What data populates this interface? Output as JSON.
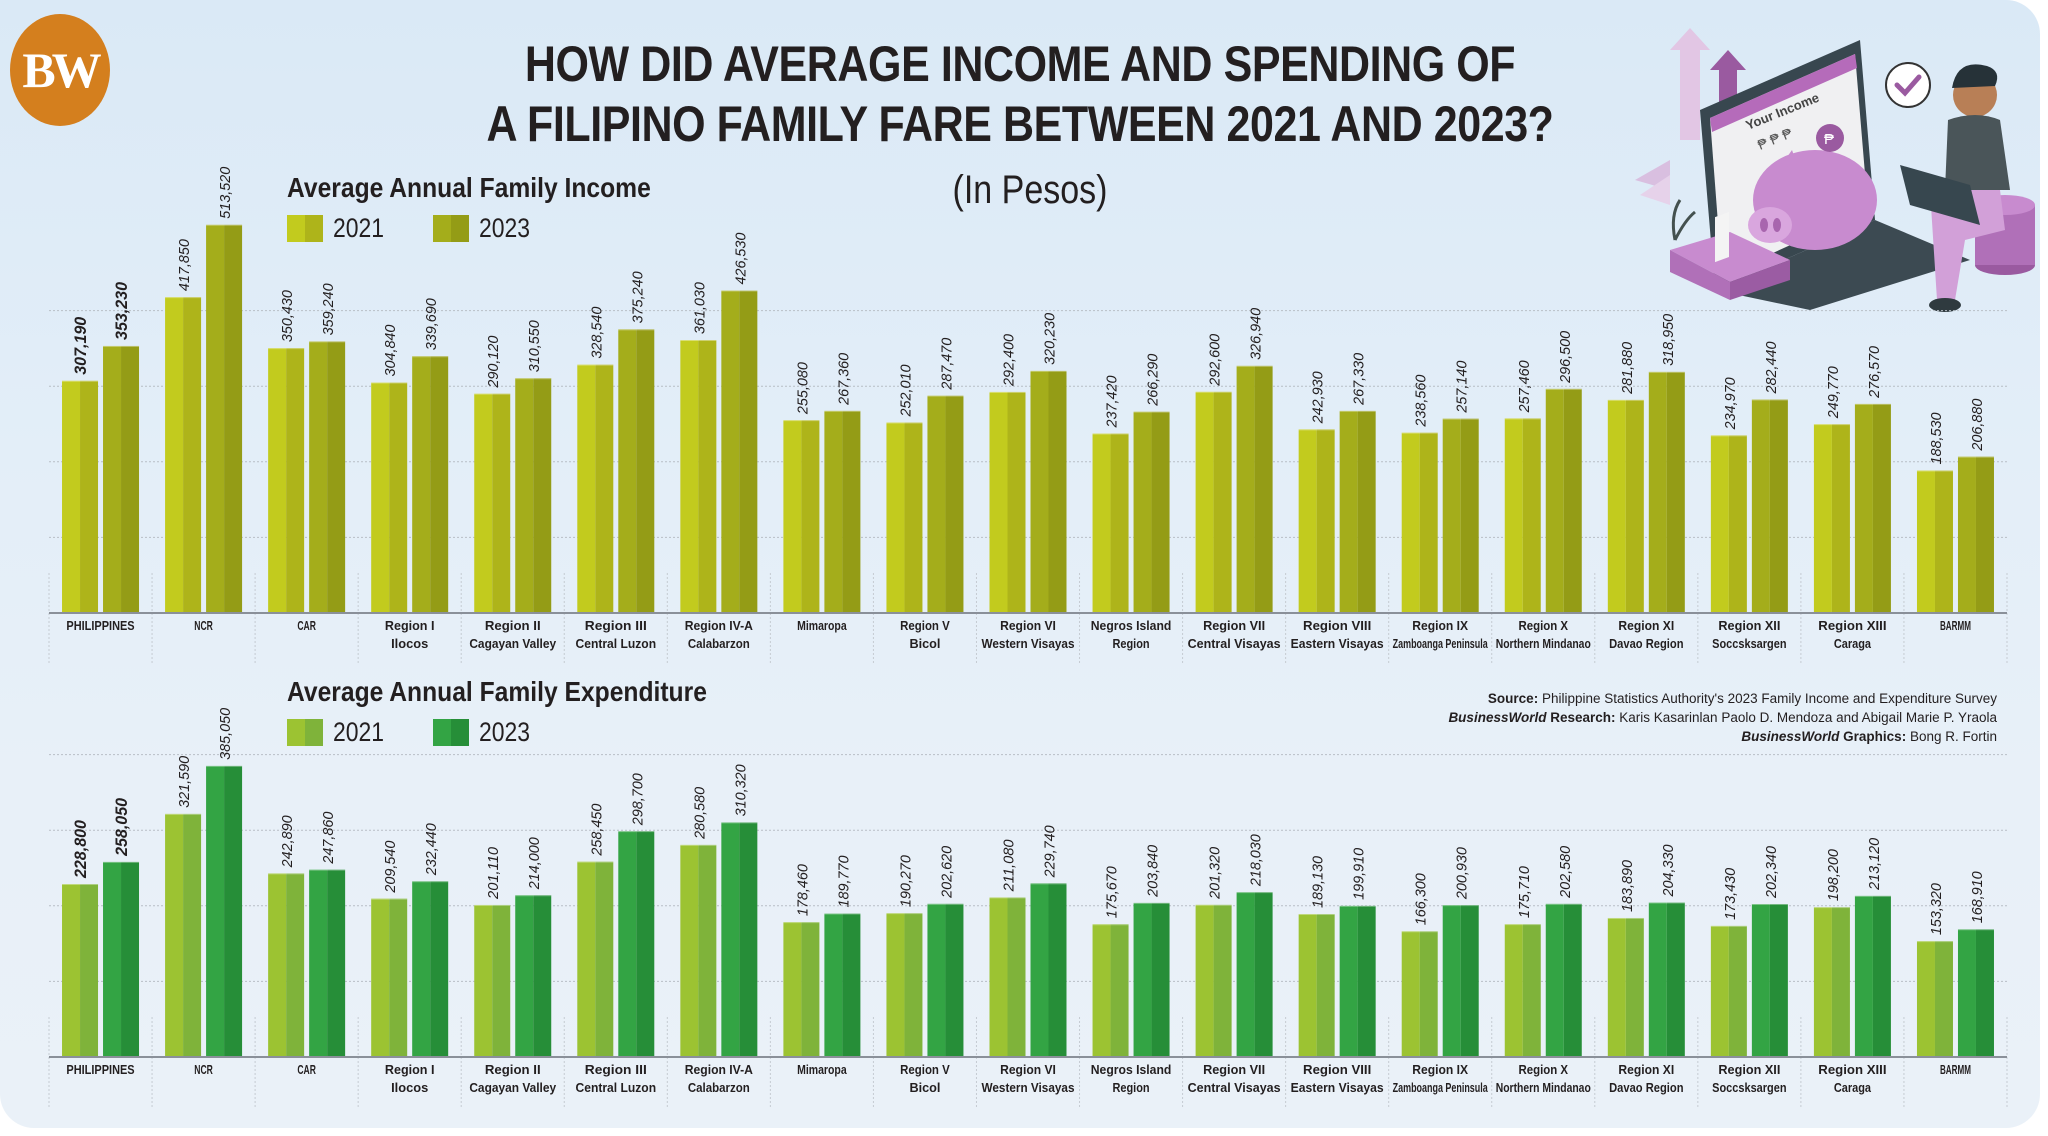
{
  "header": {
    "logo_text": "BW",
    "title_line1": "HOW DID AVERAGE INCOME AND SPENDING OF",
    "title_line2": "A FILIPINO FAMILY FARE BETWEEN 2021 AND 2023?",
    "subtitle": "(In Pesos)"
  },
  "illustration": {
    "screen_text": "Your Income",
    "currency_symbols": "₱ ₱ ₱",
    "coin_symbol": "₱"
  },
  "source": {
    "source_label": "Source:",
    "source_text": " Philippine Statistics Authority's 2023 Family Income and Expenditure Survey",
    "research_brand": "BusinessWorld",
    "research_label": " Research:",
    "research_text": " Karis Kasarinlan Paolo D. Mendoza and Abigail Marie P. Yraola",
    "graphics_brand": "BusinessWorld",
    "graphics_label": " Graphics:",
    "graphics_text": " Bong R. Fortin"
  },
  "colors": {
    "income_2021": "#c2cb1e",
    "income_2021_shade": "#aeb41a",
    "income_2023": "#a4ad1b",
    "income_2023_shade": "#949c16",
    "expense_2021": "#9cc332",
    "expense_2021_shade": "#7fb33a",
    "expense_2023": "#33a444",
    "expense_2023_shade": "#268e38"
  },
  "chart_data": [
    {
      "type": "bar",
      "title": "Average Annual Family Income",
      "xlabel": "",
      "ylabel": "",
      "ylim": [
        0,
        550000
      ],
      "grid": true,
      "gridlines": [
        100000,
        200000,
        300000,
        400000
      ],
      "legend_position": "top-left",
      "categories": [
        [
          "PHILIPPINES"
        ],
        [
          "NCR"
        ],
        [
          "CAR"
        ],
        [
          "Region I",
          "Ilocos"
        ],
        [
          "Region II",
          "Cagayan Valley"
        ],
        [
          "Region III",
          "Central Luzon"
        ],
        [
          "Region IV-A",
          "Calabarzon"
        ],
        [
          "Mimaropa"
        ],
        [
          "Region V",
          "Bicol"
        ],
        [
          "Region VI",
          "Western Visayas"
        ],
        [
          "Negros Island",
          "Region"
        ],
        [
          "Region VII",
          "Central Visayas"
        ],
        [
          "Region VIII",
          "Eastern Visayas"
        ],
        [
          "Region IX",
          "Zamboanga Peninsula"
        ],
        [
          "Region X",
          "Northern Mindanao"
        ],
        [
          "Region XI",
          "Davao Region"
        ],
        [
          "Region XII",
          "Soccsksargen"
        ],
        [
          "Region XIII",
          "Caraga"
        ],
        [
          "BARMM"
        ]
      ],
      "series": [
        {
          "name": "2021",
          "values": [
            307190,
            417850,
            350430,
            304840,
            290120,
            328540,
            361030,
            255080,
            252010,
            292400,
            237420,
            292600,
            242930,
            238560,
            257460,
            281880,
            234970,
            249770,
            188530
          ],
          "labels": [
            "307,190",
            "417,850",
            "350,430",
            "304,840",
            "290,120",
            "328,540",
            "361,030",
            "255,080",
            "252,010",
            "292,400",
            "237,420",
            "292,600",
            "242,930",
            "238,560",
            "257,460",
            "281,880",
            "234,970",
            "249,770",
            "188,530"
          ]
        },
        {
          "name": "2023",
          "values": [
            353230,
            513520,
            359240,
            339690,
            310550,
            375240,
            426530,
            267360,
            287470,
            320230,
            266290,
            326940,
            267330,
            257140,
            296500,
            318950,
            282440,
            276570,
            206880
          ],
          "labels": [
            "353,230",
            "513,520",
            "359,240",
            "339,690",
            "310,550",
            "375,240",
            "426,530",
            "267,360",
            "287,470",
            "320,230",
            "266,290",
            "326,940",
            "267,330",
            "257,140",
            "296,500",
            "318,950",
            "282,440",
            "276,570",
            "206,880"
          ]
        }
      ]
    },
    {
      "type": "bar",
      "title": "Average Annual Family Expenditure",
      "xlabel": "",
      "ylabel": "",
      "ylim": [
        0,
        550000
      ],
      "grid": true,
      "gridlines": [
        100000,
        200000,
        300000,
        400000
      ],
      "legend_position": "top-left",
      "categories": [
        [
          "PHILIPPINES"
        ],
        [
          "NCR"
        ],
        [
          "CAR"
        ],
        [
          "Region I",
          "Ilocos"
        ],
        [
          "Region II",
          "Cagayan Valley"
        ],
        [
          "Region III",
          "Central Luzon"
        ],
        [
          "Region IV-A",
          "Calabarzon"
        ],
        [
          "Mimaropa"
        ],
        [
          "Region V",
          "Bicol"
        ],
        [
          "Region VI",
          "Western Visayas"
        ],
        [
          "Negros Island",
          "Region"
        ],
        [
          "Region VII",
          "Central Visayas"
        ],
        [
          "Region VIII",
          "Eastern Visayas"
        ],
        [
          "Region IX",
          "Zamboanga Peninsula"
        ],
        [
          "Region X",
          "Northern Mindanao"
        ],
        [
          "Region XI",
          "Davao Region"
        ],
        [
          "Region XII",
          "Soccsksargen"
        ],
        [
          "Region XIII",
          "Caraga"
        ],
        [
          "BARMM"
        ]
      ],
      "series": [
        {
          "name": "2021",
          "values": [
            228800,
            321590,
            242890,
            209540,
            201110,
            258450,
            280580,
            178460,
            190270,
            211080,
            175670,
            201320,
            189130,
            166300,
            175710,
            183890,
            173430,
            198200,
            153320
          ],
          "labels": [
            "228,800",
            "321,590",
            "242,890",
            "209,540",
            "201,110",
            "258,450",
            "280,580",
            "178,460",
            "190,270",
            "211,080",
            "175,670",
            "201,320",
            "189,130",
            "166,300",
            "175,710",
            "183,890",
            "173,430",
            "198,200",
            "153,320"
          ]
        },
        {
          "name": "2023",
          "values": [
            258050,
            385050,
            247860,
            232440,
            214000,
            298700,
            310320,
            189770,
            202620,
            229740,
            203840,
            218030,
            199910,
            200930,
            202580,
            204330,
            202340,
            213120,
            168910
          ],
          "labels": [
            "258,050",
            "385,050",
            "247,860",
            "232,440",
            "214,000",
            "298,700",
            "310,320",
            "189,770",
            "202,620",
            "229,740",
            "203,840",
            "218,030",
            "199,910",
            "200,930",
            "202,580",
            "204,330",
            "202,340",
            "213,120",
            "168,910"
          ]
        }
      ]
    }
  ]
}
